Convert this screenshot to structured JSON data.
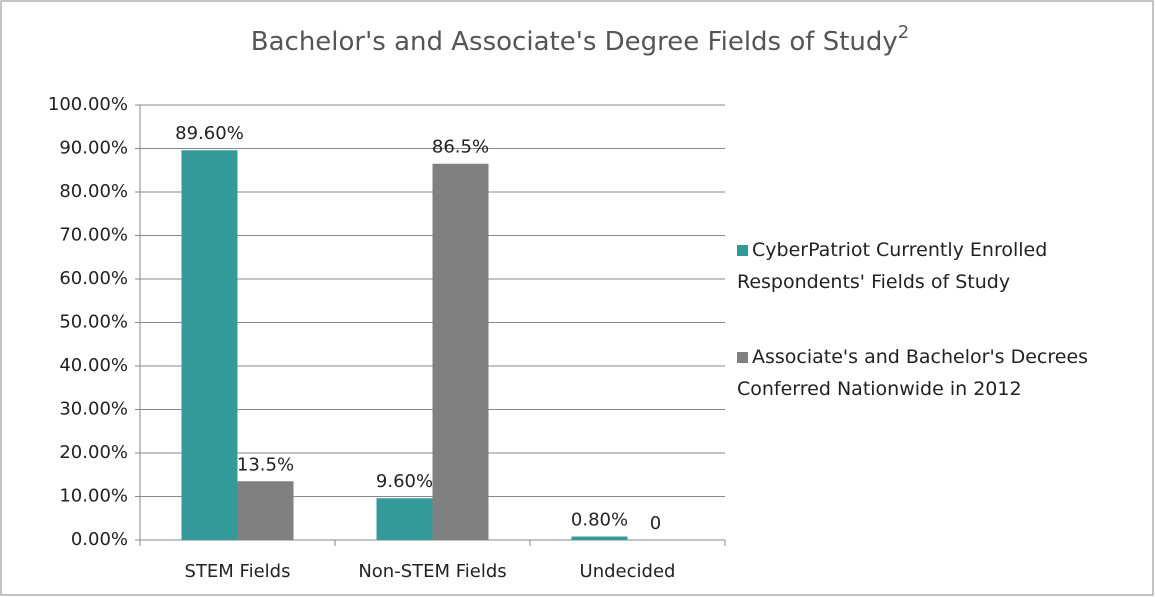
{
  "chart_data": {
    "type": "bar",
    "title": "Bachelor's and Associate's Degree Fields of Study",
    "title_note": "2",
    "categories": [
      "STEM Fields",
      "Non-STEM Fields",
      "Undecided"
    ],
    "series": [
      {
        "name": "CyberPatriot Currently Enrolled Respondents' Fields of Study",
        "color": "#339999",
        "values": [
          89.6,
          9.6,
          0.8
        ],
        "value_labels": [
          "89.60%",
          "9.60%",
          "0.80%"
        ]
      },
      {
        "name": "Associate's and Bachelor's Decrees Conferred Nationwide in 2012",
        "color": "#808080",
        "values": [
          13.5,
          86.5,
          0
        ],
        "value_labels": [
          "13.5%",
          "86.5%",
          "0"
        ]
      }
    ],
    "ylim": [
      0,
      100
    ],
    "yticks": [
      {
        "value": 0,
        "label": "0.00%"
      },
      {
        "value": 10,
        "label": "10.00%"
      },
      {
        "value": 20,
        "label": "20.00%"
      },
      {
        "value": 30,
        "label": "30.00%"
      },
      {
        "value": 40,
        "label": "40.00%"
      },
      {
        "value": 50,
        "label": "50.00%"
      },
      {
        "value": 60,
        "label": "60.00%"
      },
      {
        "value": 70,
        "label": "70.00%"
      },
      {
        "value": 80,
        "label": "80.00%"
      },
      {
        "value": 90,
        "label": "90.00%"
      },
      {
        "value": 100,
        "label": "100.00%"
      }
    ],
    "grid": true,
    "legend": "right"
  }
}
